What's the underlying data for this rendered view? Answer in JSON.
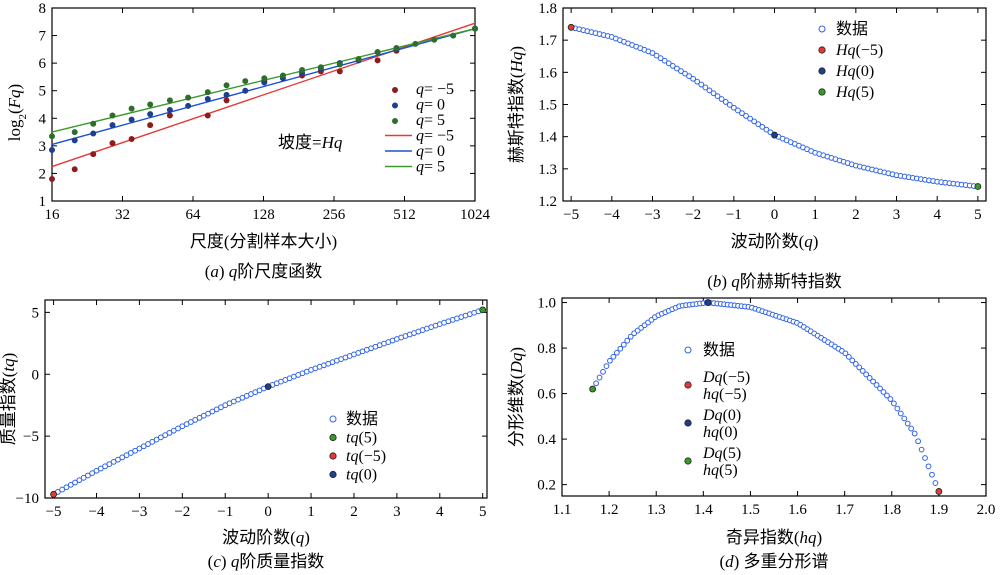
{
  "chart_data": [
    {
      "id": "a",
      "type": "scatter",
      "caption": "(a) q阶尺度函数",
      "xlabel": "尺度(分割样本大小)",
      "ylabel": "log2(Fq)",
      "xscale": "log2",
      "xlim": [
        16,
        1024
      ],
      "ylim": [
        1,
        8
      ],
      "xticks": [
        16,
        32,
        64,
        128,
        256,
        512,
        1024
      ],
      "yticks": [
        1,
        2,
        3,
        4,
        5,
        6,
        7,
        8
      ],
      "annotation": "坡度=Hq",
      "legend_position": "center-right",
      "colors": {
        "q_neg5": "#e53935",
        "q0": "#1e50d6",
        "q5": "#3a9a2a"
      },
      "x": [
        16,
        20,
        24,
        29,
        35,
        42,
        51,
        61,
        74,
        89,
        107,
        129,
        155,
        187,
        225,
        271,
        326,
        393,
        473,
        570,
        686,
        826,
        1024
      ],
      "series": [
        {
          "name": "q= −5",
          "kind": "scatter",
          "color": "#8b1d1d",
          "values": [
            1.8,
            2.15,
            2.7,
            3.1,
            3.25,
            3.75,
            4.1,
            null,
            4.1,
            4.65,
            null,
            5.35,
            null,
            5.55,
            5.7,
            5.7,
            null,
            6.1,
            6.45,
            null,
            null,
            null,
            7.25
          ]
        },
        {
          "name": "q= 0",
          "kind": "scatter",
          "color": "#1e3f8f",
          "values": [
            2.85,
            3.2,
            3.45,
            3.75,
            3.95,
            4.15,
            4.3,
            4.45,
            4.7,
            4.85,
            5.0,
            5.3,
            5.45,
            5.65,
            5.8,
            6.0,
            6.1,
            6.4,
            6.5,
            null,
            null,
            null,
            7.25
          ]
        },
        {
          "name": "q= 5",
          "kind": "scatter",
          "color": "#2f6e2a",
          "values": [
            3.35,
            3.5,
            3.8,
            4.1,
            4.35,
            4.5,
            4.65,
            4.75,
            4.95,
            5.2,
            5.35,
            5.45,
            5.55,
            5.75,
            5.85,
            5.95,
            6.15,
            6.4,
            6.55,
            6.7,
            6.85,
            7.0,
            7.25
          ]
        },
        {
          "name": "q= −5",
          "kind": "line",
          "color": "#e53935",
          "points": [
            [
              16,
              2.25
            ],
            [
              1024,
              7.45
            ]
          ]
        },
        {
          "name": "q= 0",
          "kind": "line",
          "color": "#1e50d6",
          "points": [
            [
              16,
              3.05
            ],
            [
              1024,
              7.25
            ]
          ]
        },
        {
          "name": "q= 5",
          "kind": "line",
          "color": "#3a9a2a",
          "points": [
            [
              16,
              3.5
            ],
            [
              1024,
              7.25
            ]
          ]
        }
      ]
    },
    {
      "id": "b",
      "type": "scatter",
      "caption": "(b) q阶赫斯特指数",
      "xlabel": "波动阶数(q)",
      "ylabel": "赫斯特指数(Hq)",
      "xlim": [
        -5.2,
        5.2
      ],
      "ylim": [
        1.2,
        1.8
      ],
      "xticks": [
        -5,
        -4,
        -3,
        -2,
        -1,
        0,
        1,
        2,
        3,
        4,
        5
      ],
      "yticks": [
        1.2,
        1.3,
        1.4,
        1.5,
        1.6,
        1.7,
        1.8
      ],
      "legend": [
        "数据",
        "Hq(−5)",
        "Hq(0)",
        "Hq(5)"
      ],
      "legend_position": "top-right",
      "curve": {
        "q": [
          -5,
          -4,
          -3,
          -2,
          -1,
          0,
          1,
          2,
          3,
          4,
          5
        ],
        "Hq": [
          1.74,
          1.71,
          1.66,
          1.58,
          1.49,
          1.405,
          1.35,
          1.31,
          1.28,
          1.26,
          1.245
        ]
      },
      "highlights": [
        {
          "name": "Hq(−5)",
          "x": -5,
          "y": 1.74,
          "color": "#e53935"
        },
        {
          "name": "Hq(0)",
          "x": 0,
          "y": 1.405,
          "color": "#1e3f8f"
        },
        {
          "name": "Hq(5)",
          "x": 5,
          "y": 1.245,
          "color": "#3a9a2a"
        }
      ],
      "colors": {
        "data": "#2f63e8"
      }
    },
    {
      "id": "c",
      "type": "scatter",
      "caption": "(c) q阶质量指数",
      "xlabel": "波动阶数(q)",
      "ylabel": "质量指数(tq)",
      "xlim": [
        -5.2,
        5.1
      ],
      "ylim": [
        -10,
        6
      ],
      "xticks": [
        -5,
        -4,
        -3,
        -2,
        -1,
        0,
        1,
        2,
        3,
        4,
        5
      ],
      "yticks": [
        -10,
        -5,
        0,
        5
      ],
      "legend": [
        "数据",
        "tq(5)",
        "tq(−5)",
        "tq(0)"
      ],
      "legend_position": "bottom-right",
      "curve": {
        "q": [
          -5,
          -4,
          -3,
          -2,
          -1,
          0,
          1,
          2,
          3,
          4,
          5
        ],
        "tq": [
          -9.7,
          -7.8,
          -6.0,
          -4.2,
          -2.5,
          -1.0,
          0.35,
          1.6,
          2.85,
          4.05,
          5.2
        ]
      },
      "highlights": [
        {
          "name": "tq(5)",
          "x": 5,
          "y": 5.2,
          "color": "#3a9a2a"
        },
        {
          "name": "tq(−5)",
          "x": -5,
          "y": -9.7,
          "color": "#e53935"
        },
        {
          "name": "tq(0)",
          "x": 0,
          "y": -1.0,
          "color": "#1e3f8f"
        }
      ],
      "colors": {
        "data": "#2f63e8"
      }
    },
    {
      "id": "d",
      "type": "scatter",
      "caption": "(d) 多重分形谱",
      "xlabel": "奇异指数(hq)",
      "ylabel": "分形维数(Dq)",
      "xlim": [
        1.1,
        2.0
      ],
      "ylim": [
        0.15,
        1.02
      ],
      "xticks": [
        1.1,
        1.2,
        1.3,
        1.4,
        1.5,
        1.6,
        1.7,
        1.8,
        1.9,
        2.0
      ],
      "yticks": [
        0.2,
        0.4,
        0.6,
        0.8,
        1.0
      ],
      "legend": [
        {
          "lines": [
            "数据"
          ]
        },
        {
          "lines": [
            "Dq(−5)",
            "hq(−5)"
          ]
        },
        {
          "lines": [
            "Dq(0)",
            "hq(0)"
          ]
        },
        {
          "lines": [
            "Dq(5)",
            "hq(5)"
          ]
        }
      ],
      "legend_position": "center-left",
      "curve": {
        "h": [
          1.165,
          1.2,
          1.25,
          1.3,
          1.35,
          1.41,
          1.5,
          1.6,
          1.7,
          1.8,
          1.85,
          1.9
        ],
        "D": [
          0.62,
          0.74,
          0.86,
          0.94,
          0.985,
          1.0,
          0.98,
          0.91,
          0.78,
          0.57,
          0.42,
          0.17
        ]
      },
      "highlights": [
        {
          "name": "q=5",
          "x": 1.165,
          "y": 0.62,
          "color": "#3a9a2a"
        },
        {
          "name": "q=0",
          "x": 1.41,
          "y": 1.0,
          "color": "#1e3f8f"
        },
        {
          "name": "q=-5",
          "x": 1.9,
          "y": 0.17,
          "color": "#e53935"
        }
      ],
      "colors": {
        "data": "#2f63e8",
        "neg5": "#e53935",
        "zero": "#1e3f8f",
        "pos5": "#3a9a2a"
      }
    }
  ]
}
